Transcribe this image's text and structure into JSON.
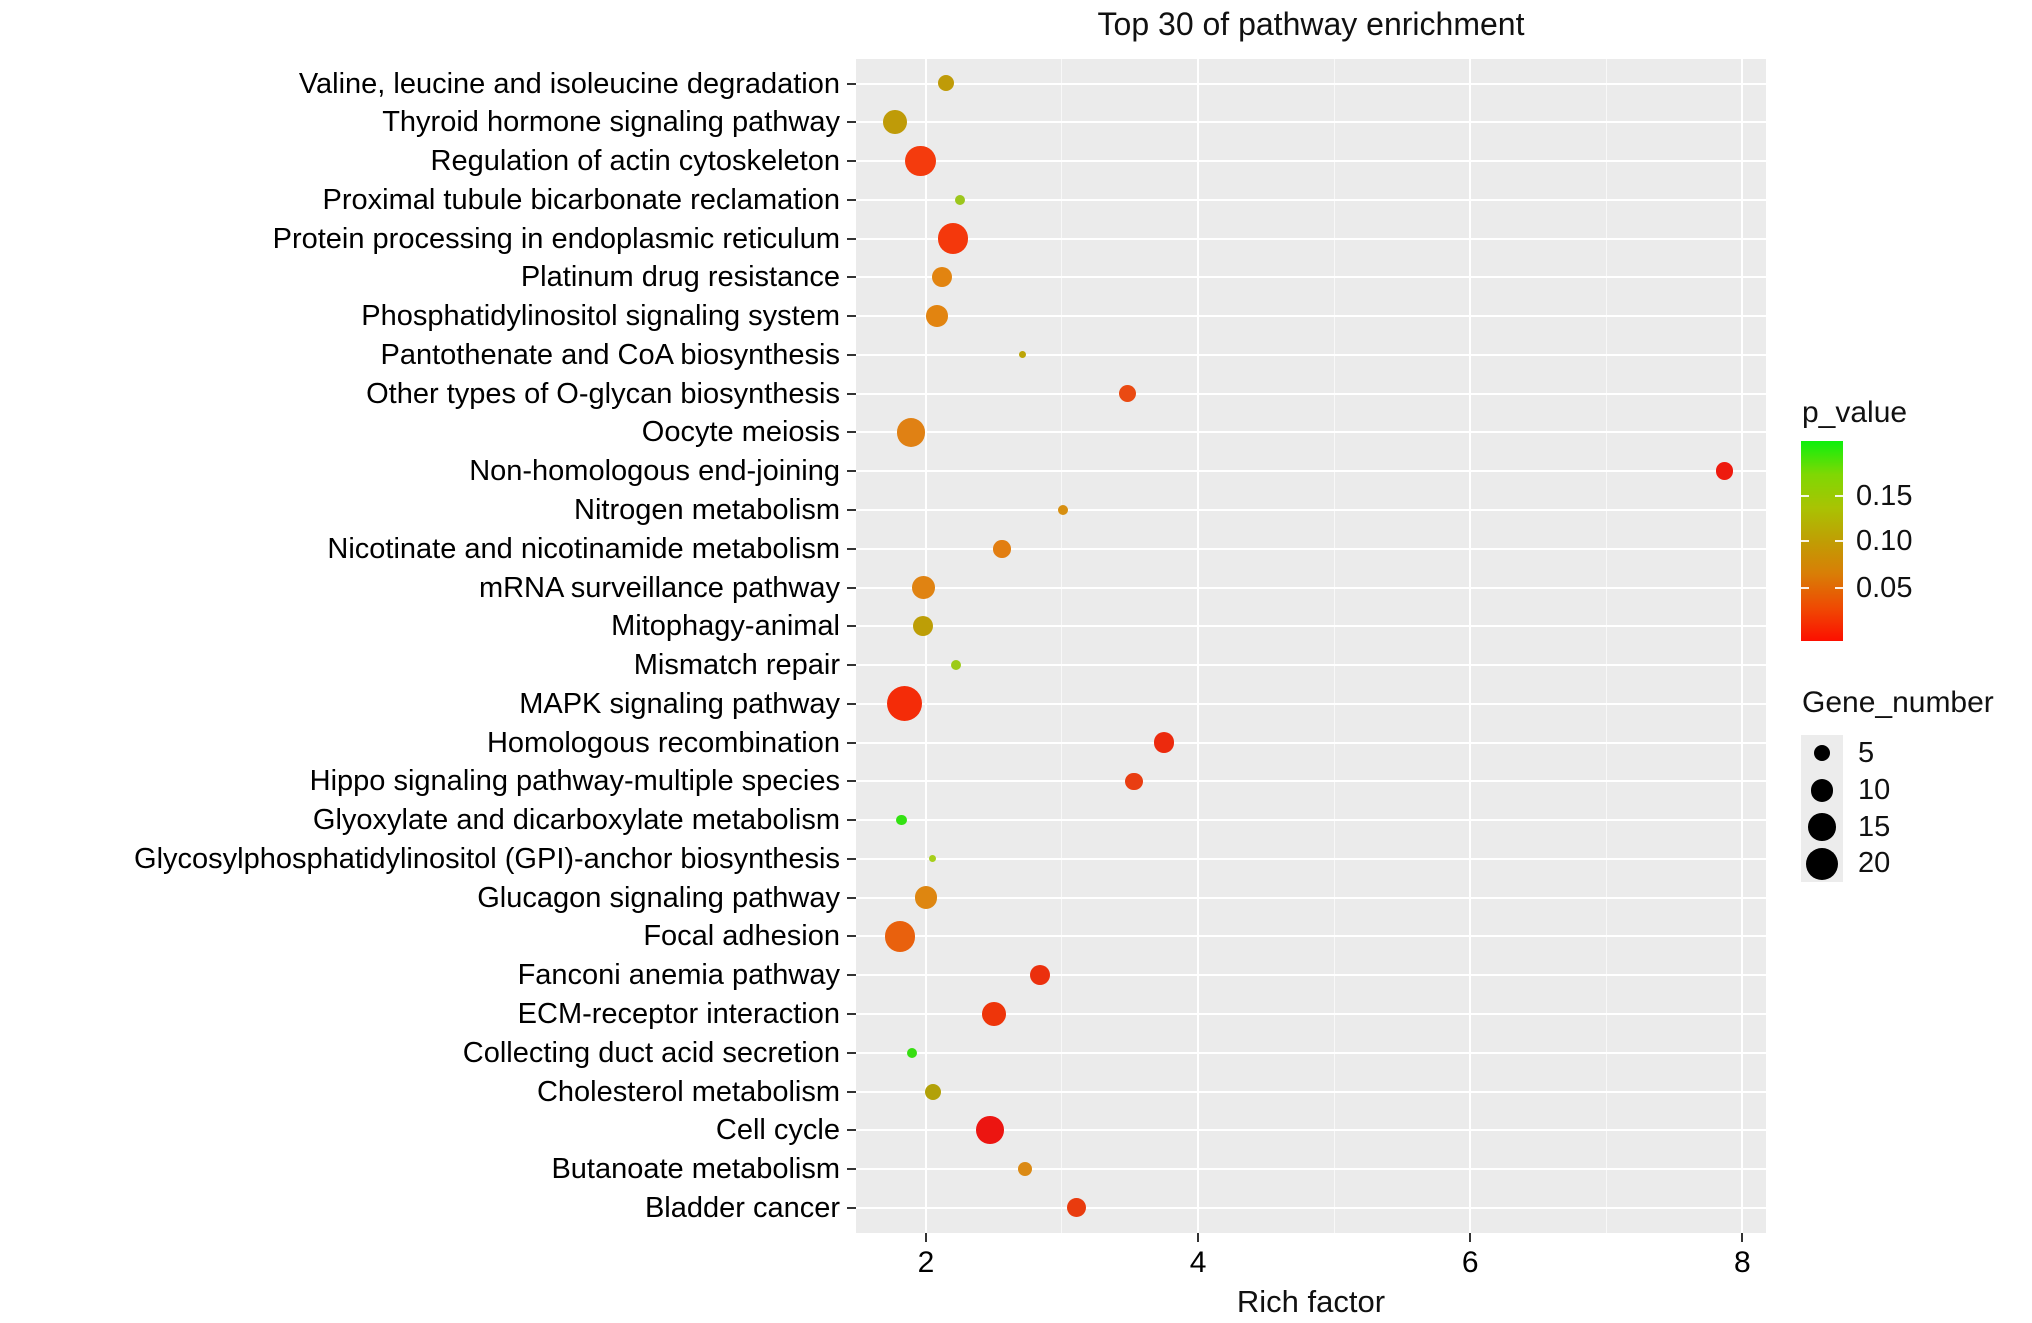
{
  "title": "Top 30 of pathway enrichment",
  "chart_data": {
    "type": "scatter",
    "title": "Top 30 of pathway enrichment",
    "xlabel": "Rich factor",
    "ylabel": "",
    "xlim": [
      1.486,
      8.174
    ],
    "x_ticks": [
      2,
      4,
      6,
      8
    ],
    "x_minor_ticks": [
      3,
      5,
      7
    ],
    "grid": "white gridlines on gray panel",
    "panel_bg": "#ebebeb",
    "legend_position": "right",
    "points": [
      {
        "label": "Valine, leucine and isoleucine degradation",
        "rich_factor": 2.15,
        "gene_number": 5,
        "p_value": 0.1,
        "color": "#bf9b08"
      },
      {
        "label": "Thyroid hormone signaling pathway",
        "rich_factor": 1.77,
        "gene_number": 11,
        "p_value": 0.1,
        "color": "#bf9b08"
      },
      {
        "label": "Regulation of actin cytoskeleton",
        "rich_factor": 1.96,
        "gene_number": 18,
        "p_value": 0.025,
        "color": "#f43b0d"
      },
      {
        "label": "Proximal tubule bicarbonate reclamation",
        "rich_factor": 2.25,
        "gene_number": 2,
        "p_value": 0.15,
        "color": "#9cc61c"
      },
      {
        "label": "Protein processing in endoplasmic reticulum",
        "rich_factor": 2.2,
        "gene_number": 18,
        "p_value": 0.025,
        "color": "#f4380c"
      },
      {
        "label": "Platinum drug resistance",
        "rich_factor": 2.12,
        "gene_number": 8,
        "p_value": 0.065,
        "color": "#e28410"
      },
      {
        "label": "Phosphatidylinositol signaling system",
        "rich_factor": 2.08,
        "gene_number": 9,
        "p_value": 0.065,
        "color": "#e28410"
      },
      {
        "label": "Pantothenate and CoA biosynthesis",
        "rich_factor": 2.71,
        "gene_number": 1,
        "p_value": 0.105,
        "color": "#bda507"
      },
      {
        "label": "Other types of O-glycan biosynthesis",
        "rich_factor": 3.48,
        "gene_number": 6,
        "p_value": 0.035,
        "color": "#ea4a12"
      },
      {
        "label": "Oocyte meiosis",
        "rich_factor": 1.89,
        "gene_number": 16,
        "p_value": 0.07,
        "color": "#e08114"
      },
      {
        "label": "Non-homologous end-joining",
        "rich_factor": 7.87,
        "gene_number": 6,
        "p_value": 0.004,
        "color": "#ee1a0e"
      },
      {
        "label": "Nitrogen metabolism",
        "rich_factor": 3.01,
        "gene_number": 2,
        "p_value": 0.08,
        "color": "#d78f11"
      },
      {
        "label": "Nicotinate and nicotinamide metabolism",
        "rich_factor": 2.56,
        "gene_number": 6,
        "p_value": 0.06,
        "color": "#e27e11"
      },
      {
        "label": "mRNA surveillance pathway",
        "rich_factor": 1.98,
        "gene_number": 10,
        "p_value": 0.07,
        "color": "#e08312"
      },
      {
        "label": "Mitophagy-animal",
        "rich_factor": 1.98,
        "gene_number": 8,
        "p_value": 0.1,
        "color": "#bd9e06"
      },
      {
        "label": "Mismatch repair",
        "rich_factor": 2.22,
        "gene_number": 2,
        "p_value": 0.15,
        "color": "#9ccb17"
      },
      {
        "label": "MAPK signaling pathway",
        "rich_factor": 1.84,
        "gene_number": 24,
        "p_value": 0.015,
        "color": "#f42c08"
      },
      {
        "label": "Homologous recombination",
        "rich_factor": 3.75,
        "gene_number": 8,
        "p_value": 0.02,
        "color": "#ec2a0d"
      },
      {
        "label": "Hippo signaling pathway-multiple species",
        "rich_factor": 3.53,
        "gene_number": 6,
        "p_value": 0.03,
        "color": "#e93d11"
      },
      {
        "label": "Glyoxylate and dicarboxylate metabolism",
        "rich_factor": 1.82,
        "gene_number": 2,
        "p_value": 0.19,
        "color": "#33e212"
      },
      {
        "label": "Glycosylphosphatidylinositol (GPI)-anchor biosynthesis",
        "rich_factor": 2.05,
        "gene_number": 1,
        "p_value": 0.145,
        "color": "#a6cf1a"
      },
      {
        "label": "Glucagon signaling pathway",
        "rich_factor": 2.0,
        "gene_number": 10,
        "p_value": 0.075,
        "color": "#de8610"
      },
      {
        "label": "Focal adhesion",
        "rich_factor": 1.81,
        "gene_number": 18,
        "p_value": 0.05,
        "color": "#e9610d"
      },
      {
        "label": "Fanconi anemia pathway",
        "rich_factor": 2.84,
        "gene_number": 8,
        "p_value": 0.022,
        "color": "#eb300d"
      },
      {
        "label": "ECM-receptor interaction",
        "rich_factor": 2.5,
        "gene_number": 11,
        "p_value": 0.02,
        "color": "#ee350a"
      },
      {
        "label": "Collecting duct acid secretion",
        "rich_factor": 1.9,
        "gene_number": 2,
        "p_value": 0.19,
        "color": "#37de12"
      },
      {
        "label": "Cholesterol metabolism",
        "rich_factor": 2.05,
        "gene_number": 5,
        "p_value": 0.11,
        "color": "#b2a108"
      },
      {
        "label": "Cell cycle",
        "rich_factor": 2.47,
        "gene_number": 15,
        "p_value": 0.008,
        "color": "#ec1511"
      },
      {
        "label": "Butanoate metabolism",
        "rich_factor": 2.73,
        "gene_number": 4,
        "p_value": 0.08,
        "color": "#db8a15"
      },
      {
        "label": "Bladder cancer",
        "rich_factor": 3.11,
        "gene_number": 7,
        "p_value": 0.03,
        "color": "#e93b0e"
      }
    ]
  },
  "legend_pvalue": {
    "title": "p_value",
    "tick_labels": [
      "0.15",
      "0.10",
      "0.05"
    ],
    "range": [
      0,
      0.21
    ],
    "gradient_stops": [
      "#0df00d",
      "#7fd803",
      "#a9c303",
      "#c09e04",
      "#d97d06",
      "#ef4a03",
      "#fc0f00"
    ]
  },
  "legend_gene_number": {
    "title": "Gene_number",
    "sizes": [
      5,
      10,
      15,
      20
    ],
    "size_labels": [
      "5",
      "10",
      "15",
      "20"
    ],
    "dot_color": "#000000",
    "key_bg": "#ececec"
  },
  "x_tick_labels": [
    "2",
    "4",
    "6",
    "8"
  ]
}
